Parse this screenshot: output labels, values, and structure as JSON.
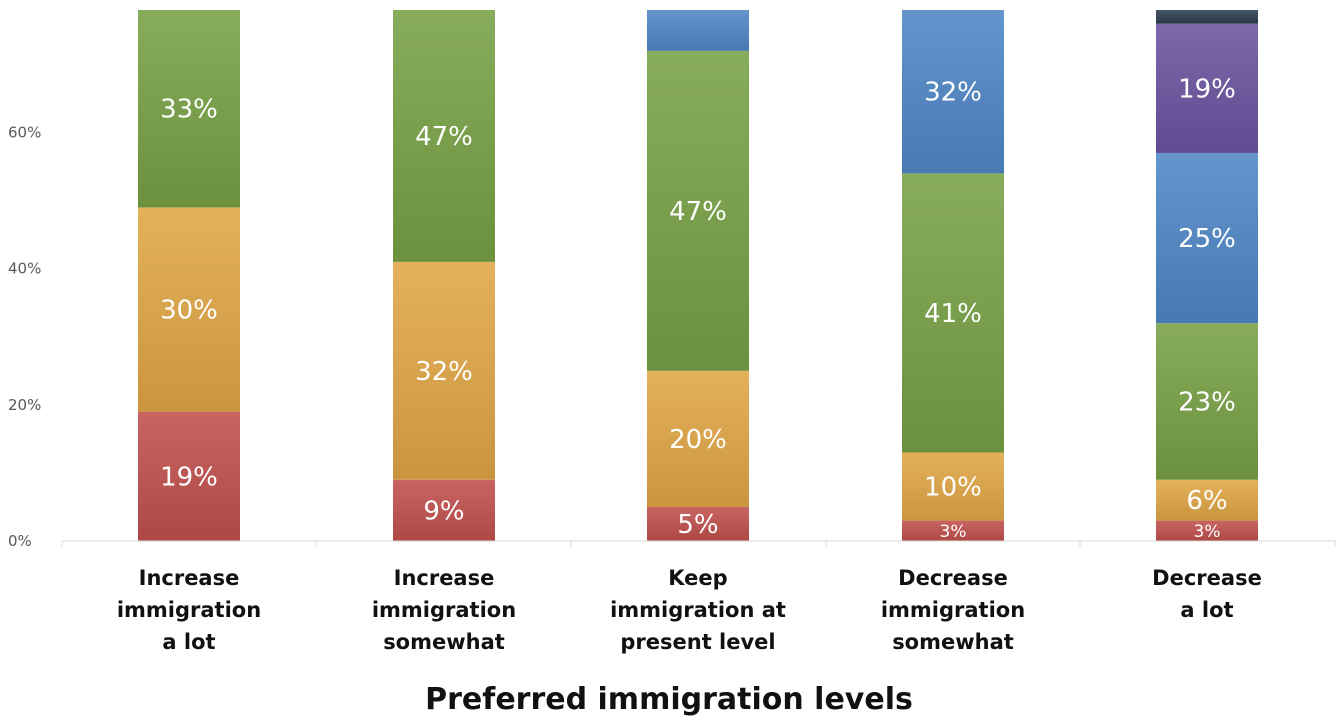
{
  "chart_data": {
    "type": "bar",
    "stacked": true,
    "categories": [
      [
        "Increase",
        "immigration",
        "a lot"
      ],
      [
        "Increase",
        "immigration",
        "somewhat"
      ],
      [
        "Keep",
        "immigration at",
        "present level"
      ],
      [
        "Decrease",
        "immigration",
        "somewhat"
      ],
      [
        "Decrease",
        "a lot"
      ]
    ],
    "xlabel": "Preferred immigration levels",
    "ylabel": "",
    "ylim": [
      0,
      0.78
    ],
    "yticks": [
      "0%",
      "20%",
      "40%",
      "60%"
    ],
    "ytick_values": [
      0,
      0.2,
      0.4,
      0.6
    ],
    "grid": false,
    "legend": "none",
    "series": [
      {
        "color": "#c0504d",
        "values": [
          0.19,
          0.09,
          0.05,
          0.03,
          0.03
        ],
        "labels": [
          "19%",
          "9%",
          "5%",
          "3%",
          "3%"
        ]
      },
      {
        "color": "#e0a645",
        "values": [
          0.3,
          0.32,
          0.2,
          0.1,
          0.06
        ],
        "labels": [
          "30%",
          "32%",
          "20%",
          "10%",
          "6%"
        ]
      },
      {
        "color": "#77a145",
        "values": [
          0.33,
          0.47,
          0.47,
          0.41,
          0.23
        ],
        "labels": [
          "33%",
          "47%",
          "47%",
          "41%",
          "23%"
        ]
      },
      {
        "color": "#4f86c6",
        "values": [
          0.0,
          0.0,
          0.06,
          0.32,
          0.25
        ],
        "labels": [
          "",
          "",
          "",
          "32%",
          "25%"
        ]
      },
      {
        "color": "#6b53a0",
        "values": [
          0.0,
          0.0,
          0.0,
          0.0,
          0.19
        ],
        "labels": [
          "",
          "",
          "",
          "",
          "19%"
        ]
      },
      {
        "color": "#2c3e50",
        "values": [
          0.0,
          0.0,
          0.0,
          0.0,
          0.02
        ],
        "labels": [
          "",
          "",
          "",
          "",
          ""
        ]
      }
    ]
  }
}
